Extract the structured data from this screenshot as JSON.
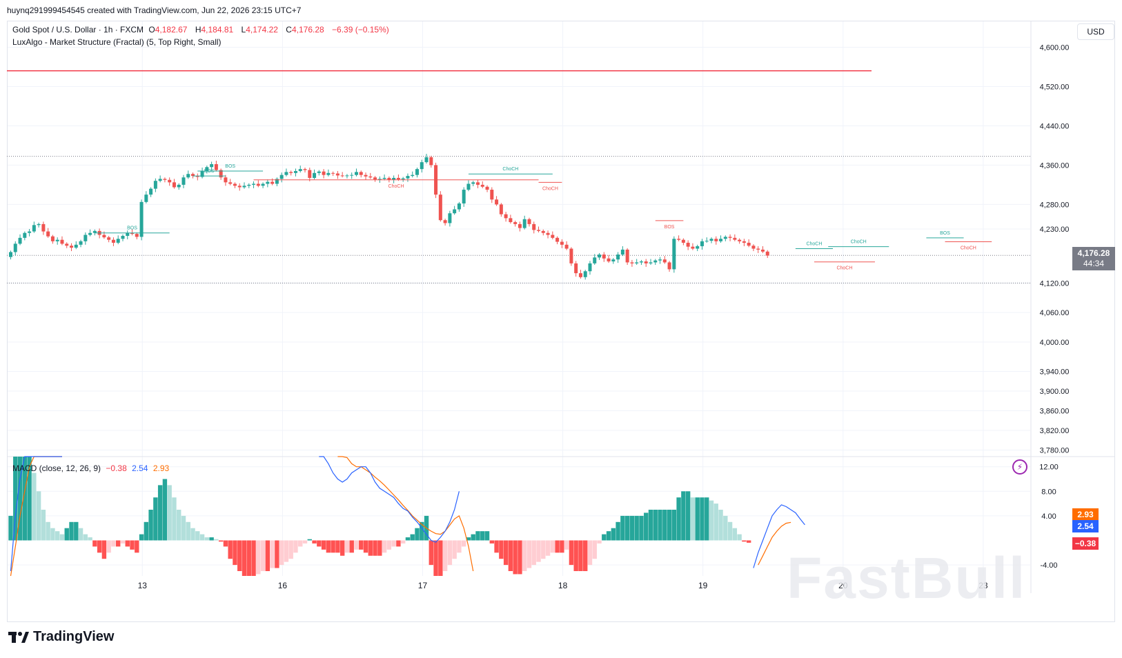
{
  "caption": "huynq291999454545 created with TradingView.com, Jun 22, 2026 23:15 UTC+7",
  "legend": {
    "symbol": "Gold Spot / U.S. Dollar · 1h · FXCM",
    "o_label": "O",
    "o_value": "4,182.67",
    "h_label": "H",
    "h_value": "4,184.81",
    "l_label": "L",
    "l_value": "4,174.22",
    "c_label": "C",
    "c_value": "4,176.28",
    "change": "−6.39 (−0.15%)",
    "indicator": "LuxAlgo - Market Structure (Fractal) (5, Top Right, Small)"
  },
  "macd_legend": {
    "name": "MACD (close, 12, 26, 9)",
    "hist": "−0.38",
    "macd": "2.54",
    "signal": "2.93"
  },
  "currency_button": "USD",
  "last_price": {
    "price": "4,176.28",
    "countdown": "44:34"
  },
  "macd_tags": {
    "signal": "2.93",
    "macd": "2.54",
    "hist": "−0.38"
  },
  "brand": "TradingView",
  "watermark": "FastBull",
  "colors": {
    "up": "#26a69a",
    "down": "#ef5350",
    "macd": "#2962ff",
    "signal": "#ff6d00",
    "resistance": "#f23645"
  },
  "chart_data": [
    {
      "type": "candlestick",
      "ylim": [
        3740,
        4640
      ],
      "y_ticks": [
        "4,600.00",
        "4,520.00",
        "4,440.00",
        "4,360.00",
        "4,280.00",
        "4,230.00",
        "4,120.00",
        "4,060.00",
        "4,000.00",
        "3,940.00",
        "3,900.00",
        "3,860.00",
        "3,820.00",
        "3,780.00"
      ],
      "y_tick_values": [
        4600,
        4520,
        4440,
        4360,
        4280,
        4230,
        4120,
        4060,
        4000,
        3940,
        3900,
        3860,
        3820,
        3780
      ],
      "x_ticks": [
        "13",
        "16",
        "17",
        "18",
        "19",
        "20",
        "23"
      ],
      "x_tick_index": [
        27,
        57,
        87,
        117,
        147,
        177,
        207
      ],
      "resistance_line": 4552,
      "dotted_levels": [
        4378,
        4176.28,
        4120
      ],
      "closes": [
        4183,
        4200,
        4212,
        4222,
        4225,
        4238,
        4240,
        4225,
        4215,
        4205,
        4208,
        4200,
        4196,
        4192,
        4198,
        4205,
        4218,
        4222,
        4226,
        4218,
        4213,
        4208,
        4202,
        4210,
        4216,
        4222,
        4220,
        4214,
        4285,
        4300,
        4312,
        4328,
        4332,
        4330,
        4325,
        4315,
        4320,
        4335,
        4342,
        4338,
        4336,
        4348,
        4356,
        4362,
        4350,
        4335,
        4325,
        4322,
        4318,
        4315,
        4318,
        4320,
        4322,
        4318,
        4322,
        4326,
        4322,
        4332,
        4340,
        4346,
        4344,
        4348,
        4352,
        4350,
        4334,
        4344,
        4347,
        4340,
        4344,
        4343,
        4339,
        4338,
        4339,
        4340,
        4346,
        4340,
        4337,
        4335,
        4331,
        4332,
        4334,
        4330,
        4334,
        4331,
        4333,
        4338,
        4340,
        4352,
        4366,
        4376,
        4360,
        4300,
        4248,
        4242,
        4262,
        4270,
        4282,
        4310,
        4322,
        4325,
        4320,
        4316,
        4310,
        4290,
        4280,
        4260,
        4252,
        4244,
        4240,
        4232,
        4250,
        4240,
        4228,
        4226,
        4222,
        4218,
        4212,
        4204,
        4198,
        4190,
        4160,
        4140,
        4132,
        4144,
        4160,
        4172,
        4178,
        4170,
        4164,
        4168,
        4178,
        4188,
        4162,
        4160,
        4162,
        4164,
        4160,
        4162,
        4166,
        4168,
        4162,
        4148,
        4210,
        4208,
        4202,
        4194,
        4190,
        4195,
        4205,
        4206,
        4210,
        4205,
        4210,
        4214,
        4212,
        4208,
        4205,
        4202,
        4196,
        4190,
        4188,
        4184,
        4176
      ],
      "structure_labels": [
        {
          "text": "BOS",
          "color": "up"
        },
        {
          "text": "BOS",
          "color": "up"
        },
        {
          "text": "BOS",
          "color": "up"
        },
        {
          "text": "ChoCH",
          "color": "down"
        },
        {
          "text": "ChoCH",
          "color": "up"
        },
        {
          "text": "ChoCH",
          "color": "down"
        },
        {
          "text": "BOS",
          "color": "down"
        },
        {
          "text": "ChoCH",
          "color": "up"
        },
        {
          "text": "ChoCH",
          "color": "up"
        },
        {
          "text": "ChoCH",
          "color": "down"
        },
        {
          "text": "BOS",
          "color": "up"
        },
        {
          "text": "ChoCH",
          "color": "down"
        }
      ]
    },
    {
      "type": "macd",
      "ylim": [
        -6.5,
        15.5
      ],
      "y_ticks": [
        "12.00",
        "8.00",
        "4.00",
        "-4.00"
      ],
      "y_tick_values": [
        12,
        8,
        4,
        -4
      ],
      "histogram": [
        4,
        14,
        14,
        14,
        14,
        11,
        8,
        5,
        3,
        2,
        1.5,
        1,
        2,
        3,
        3,
        2,
        1,
        0.5,
        -1,
        -2,
        -3,
        -2,
        -1,
        -1,
        -0.5,
        -1,
        -1.5,
        -2,
        1,
        3,
        5,
        7,
        9,
        10,
        9,
        7,
        5,
        4,
        3,
        2,
        1.5,
        1,
        0.5,
        0.5,
        0.2,
        -0.2,
        -1,
        -3,
        -4,
        -5,
        -6,
        -6,
        -6,
        -5.5,
        -5,
        -5,
        -4.5,
        -4.5,
        -4,
        -3.5,
        -3,
        -2,
        -1,
        -0.5,
        0.2,
        -0.5,
        -1,
        -1.5,
        -2,
        -2,
        -2,
        -2.5,
        -2,
        -2,
        -1.5,
        -1.5,
        -2,
        -2.5,
        -2.5,
        -2.5,
        -2,
        -1.5,
        -1,
        -1,
        -0.5,
        0.5,
        1,
        2,
        3,
        4,
        -4,
        -6,
        -6,
        -5,
        -4,
        -3,
        -2,
        -1,
        0.5,
        1,
        1.5,
        1.5,
        1.5,
        -0.5,
        -2,
        -3,
        -4,
        -5,
        -5.5,
        -5.5,
        -5,
        -4.5,
        -4,
        -3.5,
        -3,
        -2.5,
        -2,
        -2,
        -2,
        -1.5,
        -4,
        -5,
        -5,
        -5,
        -4,
        -3,
        -0.5,
        1,
        1.5,
        2,
        3,
        4,
        4,
        4,
        4,
        4,
        4.5,
        5,
        5,
        5,
        5,
        5,
        5,
        7,
        8,
        8,
        7,
        7,
        7,
        7,
        6.5,
        6,
        5,
        4,
        3,
        2,
        1,
        -0.2,
        -0.38
      ],
      "macd_line": [
        -5,
        4,
        10,
        16,
        22,
        23,
        24,
        22,
        20,
        18,
        16,
        14,
        null,
        null,
        null,
        null,
        null,
        null,
        null,
        null,
        null,
        null,
        null,
        null,
        null,
        null,
        null,
        null,
        null,
        null,
        null,
        null,
        null,
        null,
        null,
        null,
        null,
        null,
        null,
        null,
        null,
        null,
        null,
        null,
        null,
        null,
        null,
        null,
        null,
        null,
        null,
        null,
        null,
        null,
        null,
        null,
        null,
        null,
        null,
        null,
        null,
        null,
        null,
        null,
        null,
        null,
        15.5,
        14,
        12.5,
        11,
        10,
        9.5,
        10,
        11,
        11.5,
        12,
        12,
        11,
        9.5,
        8.5,
        8,
        7.5,
        7,
        6,
        5.2,
        4.8,
        3.8,
        3,
        2,
        1,
        0,
        -0.3,
        0.5,
        1.5,
        3,
        5,
        8,
        null,
        null,
        null,
        null,
        null,
        null,
        null,
        null,
        null,
        null,
        null,
        null,
        null,
        null,
        null,
        null,
        null,
        null,
        null,
        null,
        null,
        null,
        null,
        null,
        null,
        null,
        null,
        null,
        null,
        null,
        null,
        null,
        null,
        null,
        null,
        null,
        null,
        null,
        null,
        null,
        null,
        null,
        null,
        null,
        null,
        null,
        null,
        null,
        null,
        null,
        null,
        null,
        null,
        null,
        null,
        null,
        null,
        null,
        null,
        null,
        null,
        null,
        -4.5,
        -2,
        0,
        2,
        4,
        5,
        5.8,
        5.5,
        5,
        4.5,
        3.5,
        2.54
      ],
      "signal_line": [
        -6,
        -1,
        4,
        8,
        12,
        15,
        17,
        18,
        18,
        17,
        16,
        15,
        null,
        null,
        null,
        null,
        null,
        null,
        null,
        null,
        null,
        null,
        null,
        null,
        null,
        null,
        null,
        null,
        null,
        null,
        null,
        null,
        null,
        null,
        null,
        null,
        null,
        null,
        null,
        null,
        null,
        null,
        null,
        null,
        null,
        null,
        null,
        null,
        null,
        null,
        null,
        null,
        null,
        null,
        null,
        null,
        null,
        null,
        null,
        null,
        null,
        null,
        null,
        null,
        null,
        null,
        null,
        null,
        null,
        null,
        16,
        15,
        13.5,
        12.5,
        12,
        12,
        11.5,
        11,
        10.3,
        9.7,
        9,
        8.2,
        7.4,
        6.6,
        5.7,
        4.9,
        4,
        3.3,
        2.6,
        2,
        1.5,
        1.1,
        1,
        1.5,
        2.5,
        3.5,
        4,
        2,
        -1,
        -5,
        null,
        null,
        null,
        null,
        null,
        null,
        null,
        null,
        null,
        null,
        null,
        null,
        null,
        null,
        null,
        null,
        null,
        null,
        null,
        null,
        null,
        null,
        null,
        null,
        null,
        null,
        null,
        null,
        null,
        null,
        null,
        null,
        null,
        null,
        null,
        null,
        null,
        null,
        null,
        null,
        null,
        null,
        null,
        null,
        null,
        null,
        null,
        null,
        null,
        null,
        null,
        null,
        null,
        null,
        null,
        null,
        null,
        null,
        null,
        null,
        -4,
        -2.5,
        -1,
        0.5,
        1.5,
        2.3,
        2.8,
        2.93
      ]
    }
  ]
}
